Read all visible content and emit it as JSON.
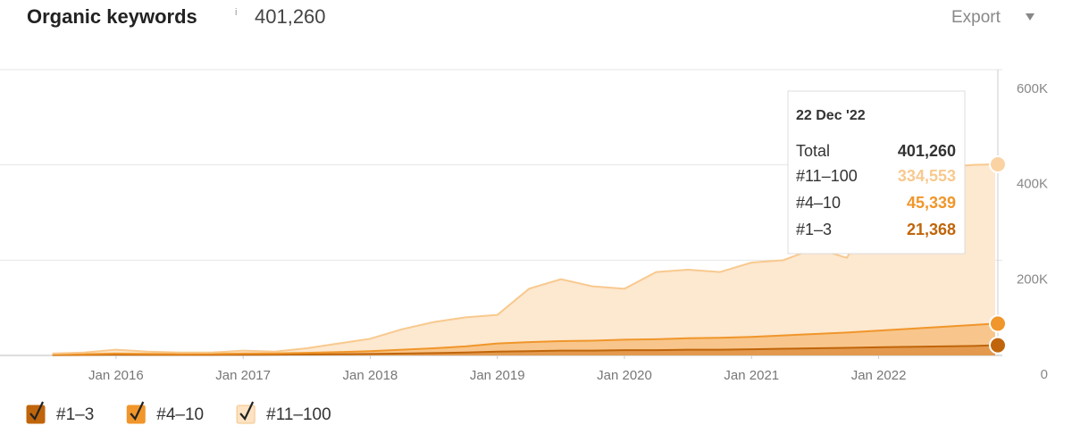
{
  "chart_data": {
    "type": "stacked_area",
    "title": "Organic keywords",
    "info": "i",
    "subtitle": "401,260",
    "export": "Export",
    "x": [
      "2015-07",
      "2015-10",
      "2016-01",
      "2016-04",
      "2016-07",
      "2016-10",
      "2017-01",
      "2017-04",
      "2017-07",
      "2017-10",
      "2018-01",
      "2018-04",
      "2018-07",
      "2018-10",
      "2019-01",
      "2019-04",
      "2019-07",
      "2019-10",
      "2020-01",
      "2020-04",
      "2020-07",
      "2020-10",
      "2021-01",
      "2021-04",
      "2021-07",
      "2021-10",
      "2022-01",
      "2022-04",
      "2022-07",
      "2022-10",
      "2022-12"
    ],
    "series": [
      {
        "name": "#1–3",
        "color": "#c0650b",
        "fill": "#e39a4f",
        "values": [
          800,
          1000,
          1500,
          1200,
          1100,
          1200,
          1500,
          1600,
          2000,
          2500,
          3000,
          4000,
          5000,
          6000,
          8000,
          9000,
          10000,
          10000,
          11000,
          11000,
          12000,
          12000,
          13000,
          14000,
          15000,
          16000,
          17000,
          18000,
          19000,
          20000,
          21368
        ]
      },
      {
        "name": "#4–10",
        "color": "#f0962a",
        "fill": "#f8c68c",
        "values": [
          1200,
          1500,
          2500,
          2000,
          1900,
          2000,
          2500,
          2600,
          3500,
          4500,
          6000,
          8000,
          10000,
          13000,
          17000,
          19000,
          20000,
          21000,
          22000,
          23000,
          24000,
          25000,
          26000,
          28000,
          30000,
          32000,
          35000,
          38000,
          41000,
          44000,
          45339
        ]
      },
      {
        "name": "#11–100",
        "color": "#f8c98e",
        "fill": "#fde8d0",
        "values": [
          2000,
          3500,
          8000,
          4800,
          3000,
          2800,
          6000,
          3800,
          9500,
          18000,
          26000,
          43000,
          55000,
          61000,
          60000,
          112000,
          130000,
          114000,
          107000,
          141000,
          144000,
          138000,
          156000,
          158000,
          180000,
          157000,
          268000,
          314000,
          335000,
          336000,
          334553
        ]
      }
    ],
    "xlim": [
      "2015-05",
      "2022-12"
    ],
    "xticks": [
      {
        "value": "2016-01",
        "label": "Jan 2016"
      },
      {
        "value": "2017-01",
        "label": "Jan 2017"
      },
      {
        "value": "2018-01",
        "label": "Jan 2018"
      },
      {
        "value": "2019-01",
        "label": "Jan 2019"
      },
      {
        "value": "2020-01",
        "label": "Jan 2020"
      },
      {
        "value": "2021-01",
        "label": "Jan 2021"
      },
      {
        "value": "2022-01",
        "label": "Jan 2022"
      }
    ],
    "ylim": [
      0,
      600000
    ],
    "yticks": [
      0,
      {
        "value": 200000,
        "label": "200K"
      },
      {
        "value": 400000,
        "label": "400K"
      },
      {
        "value": 600000,
        "label": "600K"
      }
    ],
    "grid": true,
    "tooltip": {
      "date": "22 Dec '22",
      "total_label": "Total",
      "total": "401,260",
      "values": [
        "21,368",
        "45,339",
        "334,553"
      ]
    }
  }
}
